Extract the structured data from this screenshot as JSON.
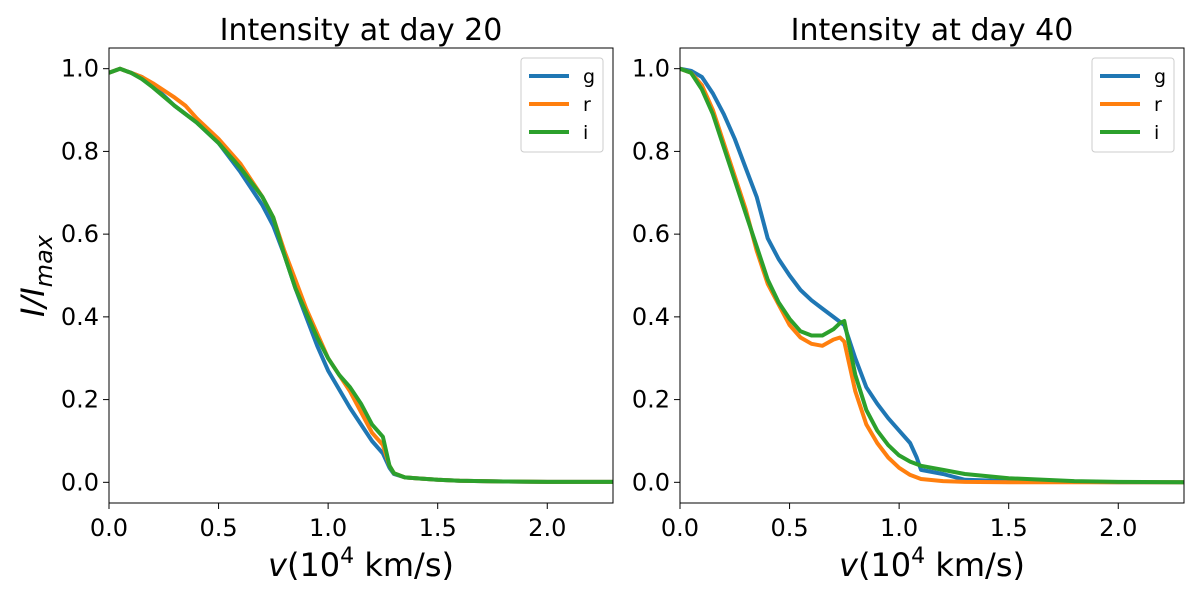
{
  "chart_data": [
    {
      "type": "line",
      "title": "Intensity at day 20",
      "xlabel": "v(10^4 km/s)",
      "xlabel_parts": {
        "var": "v",
        "open": "(10",
        "exp": "4",
        "rest": " km/s)"
      },
      "ylabel": "I/I_max",
      "ylabel_parts": {
        "main": "I/I",
        "sub": "max"
      },
      "xlim": [
        0,
        2.3
      ],
      "ylim": [
        -0.05,
        1.05
      ],
      "xticks": [
        0.0,
        0.5,
        1.0,
        1.5,
        2.0
      ],
      "xtick_labels": [
        "0.0",
        "0.5",
        "1.0",
        "1.5",
        "2.0"
      ],
      "yticks": [
        0.0,
        0.2,
        0.4,
        0.6,
        0.8,
        1.0
      ],
      "ytick_labels": [
        "0.0",
        "0.2",
        "0.4",
        "0.6",
        "0.8",
        "1.0"
      ],
      "legend_position": "upper right",
      "series": [
        {
          "name": "g",
          "color": "#1f77b4",
          "x": [
            0.0,
            0.05,
            0.1,
            0.15,
            0.2,
            0.3,
            0.4,
            0.5,
            0.6,
            0.7,
            0.75,
            0.8,
            0.85,
            0.9,
            0.95,
            1.0,
            1.1,
            1.2,
            1.25,
            1.28,
            1.3,
            1.35,
            1.4,
            1.5,
            1.6,
            1.8,
            2.0,
            2.3
          ],
          "y": [
            0.99,
            1.0,
            0.99,
            0.98,
            0.96,
            0.91,
            0.87,
            0.82,
            0.75,
            0.67,
            0.62,
            0.55,
            0.47,
            0.4,
            0.33,
            0.27,
            0.18,
            0.1,
            0.07,
            0.035,
            0.02,
            0.012,
            0.01,
            0.006,
            0.004,
            0.002,
            0.001,
            0.001
          ]
        },
        {
          "name": "r",
          "color": "#ff7f0e",
          "x": [
            0.0,
            0.05,
            0.1,
            0.15,
            0.2,
            0.3,
            0.35,
            0.4,
            0.5,
            0.6,
            0.7,
            0.75,
            0.8,
            0.85,
            0.9,
            0.95,
            1.0,
            1.05,
            1.1,
            1.15,
            1.2,
            1.25,
            1.28,
            1.3,
            1.35,
            1.4,
            1.5,
            1.6,
            1.8,
            2.0,
            2.3
          ],
          "y": [
            0.99,
            1.0,
            0.99,
            0.98,
            0.965,
            0.93,
            0.91,
            0.88,
            0.83,
            0.77,
            0.69,
            0.64,
            0.56,
            0.49,
            0.42,
            0.36,
            0.3,
            0.26,
            0.22,
            0.17,
            0.12,
            0.09,
            0.04,
            0.022,
            0.012,
            0.01,
            0.006,
            0.004,
            0.002,
            0.001,
            0.001
          ]
        },
        {
          "name": "i",
          "color": "#2ca02c",
          "x": [
            0.0,
            0.05,
            0.1,
            0.15,
            0.2,
            0.3,
            0.4,
            0.5,
            0.6,
            0.7,
            0.75,
            0.8,
            0.85,
            0.9,
            0.95,
            1.0,
            1.05,
            1.1,
            1.15,
            1.2,
            1.25,
            1.28,
            1.3,
            1.35,
            1.4,
            1.5,
            1.6,
            1.8,
            2.0,
            2.3
          ],
          "y": [
            0.99,
            1.0,
            0.99,
            0.975,
            0.955,
            0.91,
            0.87,
            0.82,
            0.76,
            0.69,
            0.64,
            0.55,
            0.47,
            0.41,
            0.35,
            0.3,
            0.26,
            0.23,
            0.19,
            0.14,
            0.11,
            0.04,
            0.022,
            0.012,
            0.01,
            0.006,
            0.004,
            0.002,
            0.001,
            0.001
          ]
        }
      ]
    },
    {
      "type": "line",
      "title": "Intensity at day 40",
      "xlabel": "v(10^4 km/s)",
      "xlabel_parts": {
        "var": "v",
        "open": "(10",
        "exp": "4",
        "rest": " km/s)"
      },
      "ylabel": "",
      "xlim": [
        0,
        2.3
      ],
      "ylim": [
        -0.05,
        1.05
      ],
      "xticks": [
        0.0,
        0.5,
        1.0,
        1.5,
        2.0
      ],
      "xtick_labels": [
        "0.0",
        "0.5",
        "1.0",
        "1.5",
        "2.0"
      ],
      "yticks": [
        0.0,
        0.2,
        0.4,
        0.6,
        0.8,
        1.0
      ],
      "ytick_labels": [
        "0.0",
        "0.2",
        "0.4",
        "0.6",
        "0.8",
        "1.0"
      ],
      "legend_position": "upper right",
      "series": [
        {
          "name": "g",
          "color": "#1f77b4",
          "x": [
            0.0,
            0.05,
            0.1,
            0.15,
            0.2,
            0.25,
            0.3,
            0.35,
            0.4,
            0.45,
            0.5,
            0.55,
            0.6,
            0.65,
            0.7,
            0.75,
            0.8,
            0.85,
            0.9,
            0.95,
            1.0,
            1.05,
            1.08,
            1.1,
            1.2,
            1.3,
            1.5,
            1.8,
            2.0,
            2.3
          ],
          "y": [
            1.0,
            0.995,
            0.98,
            0.94,
            0.89,
            0.83,
            0.76,
            0.69,
            0.59,
            0.54,
            0.5,
            0.465,
            0.44,
            0.42,
            0.4,
            0.38,
            0.3,
            0.23,
            0.19,
            0.155,
            0.125,
            0.095,
            0.06,
            0.03,
            0.02,
            0.006,
            0.003,
            0.001,
            0.0,
            0.0
          ]
        },
        {
          "name": "r",
          "color": "#ff7f0e",
          "x": [
            0.0,
            0.05,
            0.1,
            0.15,
            0.2,
            0.25,
            0.3,
            0.35,
            0.4,
            0.45,
            0.5,
            0.55,
            0.6,
            0.65,
            0.7,
            0.73,
            0.75,
            0.8,
            0.85,
            0.9,
            0.95,
            1.0,
            1.05,
            1.1,
            1.2,
            1.3,
            1.5,
            1.8,
            2.0,
            2.3
          ],
          "y": [
            1.0,
            0.99,
            0.96,
            0.9,
            0.82,
            0.74,
            0.66,
            0.56,
            0.48,
            0.43,
            0.38,
            0.35,
            0.335,
            0.33,
            0.345,
            0.35,
            0.34,
            0.22,
            0.14,
            0.095,
            0.06,
            0.035,
            0.018,
            0.008,
            0.003,
            0.001,
            0.0,
            0.0,
            0.0,
            0.0
          ]
        },
        {
          "name": "i",
          "color": "#2ca02c",
          "x": [
            0.0,
            0.05,
            0.1,
            0.15,
            0.2,
            0.25,
            0.3,
            0.35,
            0.4,
            0.45,
            0.5,
            0.55,
            0.6,
            0.65,
            0.7,
            0.73,
            0.75,
            0.8,
            0.85,
            0.9,
            0.95,
            1.0,
            1.05,
            1.1,
            1.2,
            1.3,
            1.5,
            1.8,
            2.0,
            2.3
          ],
          "y": [
            1.0,
            0.99,
            0.95,
            0.89,
            0.81,
            0.73,
            0.65,
            0.57,
            0.49,
            0.435,
            0.395,
            0.365,
            0.355,
            0.355,
            0.37,
            0.385,
            0.39,
            0.26,
            0.175,
            0.125,
            0.09,
            0.065,
            0.05,
            0.04,
            0.03,
            0.02,
            0.01,
            0.003,
            0.001,
            0.0
          ]
        }
      ]
    }
  ]
}
